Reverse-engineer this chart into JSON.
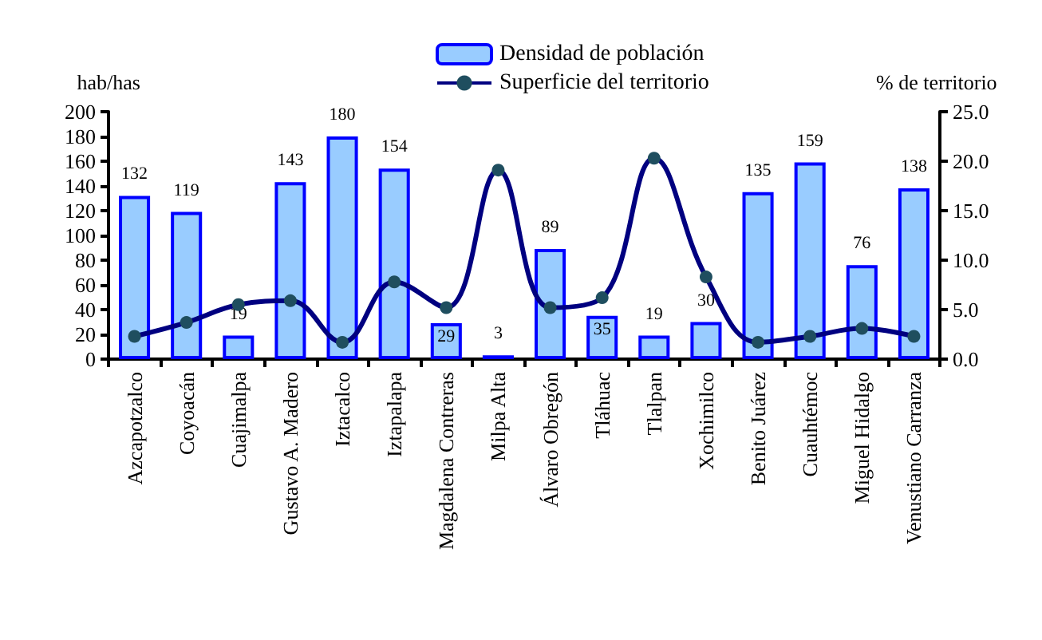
{
  "chart_data": {
    "type": "bar",
    "categories": [
      "Azcapotzalco",
      "Coyoacán",
      "Cuajimalpa",
      "Gustavo A. Madero",
      "Iztacalco",
      "Iztapalapa",
      "Magdalena Contreras",
      "Milpa Alta",
      "Álvaro Obregón",
      "Tláhuac",
      "Tlalpan",
      "Xochimilco",
      "Benito Juárez",
      "Cuauhtémoc",
      "Miguel Hidalgo",
      "Venustiano Carranza"
    ],
    "series": [
      {
        "name": "Densidad de población",
        "color": "#99ccff",
        "values": [
          132,
          119,
          19,
          143,
          180,
          154,
          29,
          3,
          89,
          35,
          19,
          30,
          135,
          159,
          76,
          138
        ],
        "value_labels": [
          "132",
          "119",
          "19",
          "143",
          "180",
          "154",
          "29",
          "3",
          "89",
          "35",
          "19",
          "30",
          "135",
          "159",
          "76",
          "138"
        ]
      },
      {
        "name": "Superficie del territorio",
        "type": "line",
        "axis": "y2",
        "color": "#000080",
        "values": [
          2.3,
          3.7,
          5.5,
          5.9,
          1.7,
          7.8,
          5.2,
          19.1,
          5.2,
          6.2,
          20.3,
          8.3,
          1.7,
          2.3,
          3.1,
          2.3
        ]
      }
    ],
    "ylabel": "hab/has",
    "y2label": "% de territorio",
    "ylim": [
      0,
      200
    ],
    "yticks": [
      0,
      20,
      40,
      60,
      80,
      100,
      120,
      140,
      160,
      180,
      200
    ],
    "y2lim": [
      0,
      25
    ],
    "y2ticks": [
      {
        "value": 0,
        "label": "0.0"
      },
      {
        "value": 5,
        "label": "5.0"
      },
      {
        "value": 10,
        "label": "10.0"
      },
      {
        "value": 15,
        "label": "15.0"
      },
      {
        "value": 20,
        "label": "20.0"
      },
      {
        "value": 25,
        "label": "25.0"
      }
    ],
    "grid": false,
    "legend": "top",
    "marker": "circle",
    "line_style": "solid"
  }
}
